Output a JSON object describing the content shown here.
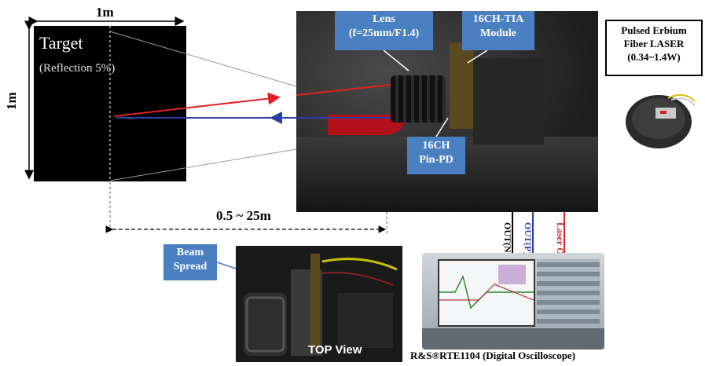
{
  "dimensions": {
    "width_label": "1m",
    "height_label": "1m",
    "range_label": "0.5 ~ 25m"
  },
  "target": {
    "title": "Target",
    "subtitle": "(Reflection 5%)"
  },
  "callouts": {
    "lens": [
      "Lens",
      "(f=25mm/F1.4)"
    ],
    "tia": [
      "16CH-TIA",
      "Module"
    ],
    "pd": [
      "16CH",
      "Pin-PD"
    ],
    "beam": [
      "Beam",
      "Spread"
    ]
  },
  "laser": {
    "line1": "Pulsed Erbium",
    "line2": "Fiber LASER",
    "line3": "(0.34~1.4W)"
  },
  "cables": {
    "out_n": "OUT(N)",
    "out_p": "OUT(P)",
    "laser_out": "Laser Out"
  },
  "top_view_label": "TOP View",
  "scope_label": "R&S®RTE1104 (Digital Oscilloscope)",
  "colors": {
    "callout_bg": "#4a7fc1",
    "beam_tx": "#e02020",
    "beam_rx": "#2a3fa8",
    "target_bg": "#000000"
  }
}
